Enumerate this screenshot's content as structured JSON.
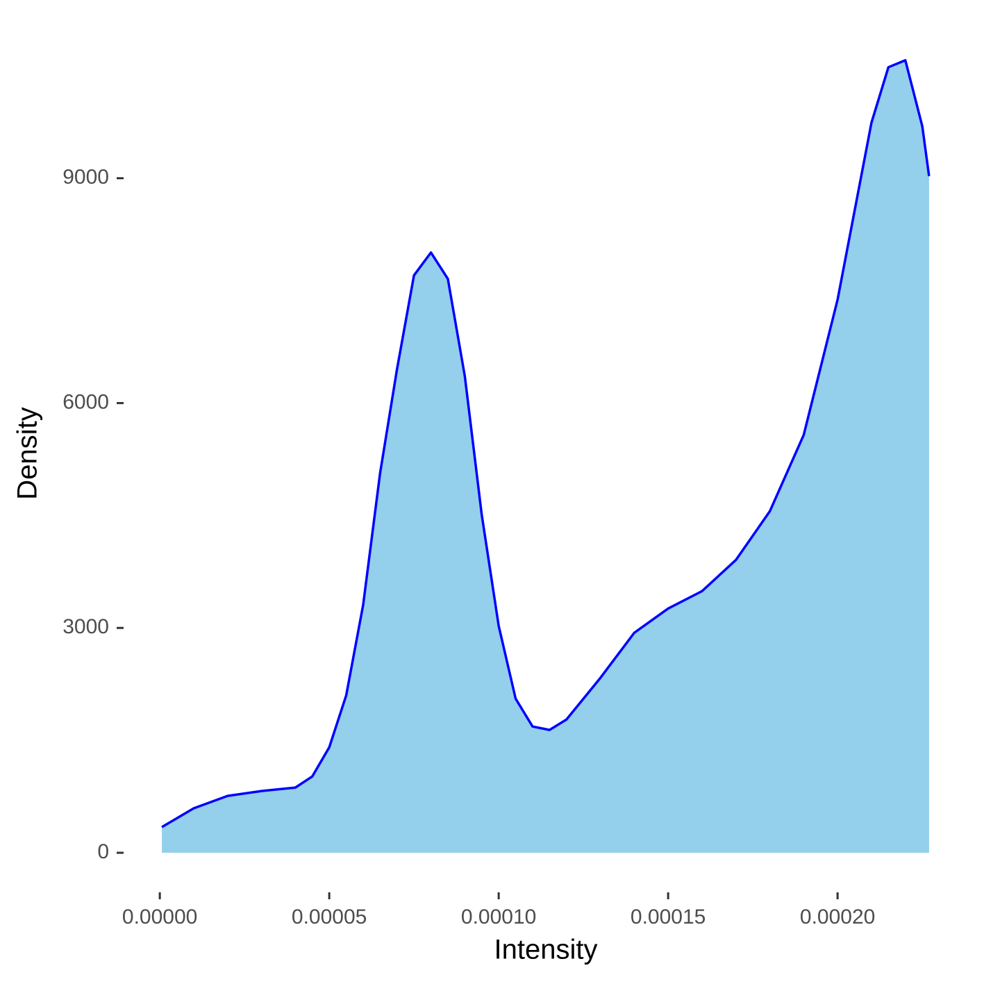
{
  "chart_data": {
    "type": "area",
    "x_label": "Intensity",
    "y_label": "Density",
    "x": [
      6e-07,
      1e-05,
      2e-05,
      3e-05,
      4e-05,
      4.5e-05,
      5e-05,
      5.5e-05,
      6e-05,
      6.5e-05,
      7e-05,
      7.5e-05,
      8e-05,
      8.5e-05,
      9e-05,
      9.5e-05,
      0.0001,
      0.000105,
      0.00011,
      0.000115,
      0.00012,
      0.00013,
      0.00014,
      0.00015,
      0.00016,
      0.00017,
      0.00018,
      0.00019,
      0.0002,
      0.00021,
      0.000215,
      0.00022,
      0.000225,
      0.000227
    ],
    "values": [
      343,
      593,
      759,
      824,
      870,
      1019,
      1407,
      2100,
      3306,
      5065,
      6454,
      7704,
      8009,
      7657,
      6361,
      4509,
      3028,
      2056,
      1685,
      1639,
      1778,
      2333,
      2935,
      3259,
      3491,
      3907,
      4556,
      5574,
      7380,
      9741,
      10481,
      10574,
      9694,
      9028
    ],
    "fill_color": "#94cfeb",
    "line_color": "#0000ff",
    "xlim": [
      -1.13e-05,
      0.0002387
    ],
    "xticks": [
      {
        "value": 0,
        "label": "0.00000"
      },
      {
        "value": 5e-05,
        "label": "0.00005"
      },
      {
        "value": 0.0001,
        "label": "0.00010"
      },
      {
        "value": 0.00015,
        "label": "0.00015"
      },
      {
        "value": 0.0002,
        "label": "0.00020"
      }
    ],
    "ylim": [
      -500,
      11100
    ],
    "yticks": [
      0,
      3000,
      6000,
      9000
    ],
    "grid": false
  }
}
